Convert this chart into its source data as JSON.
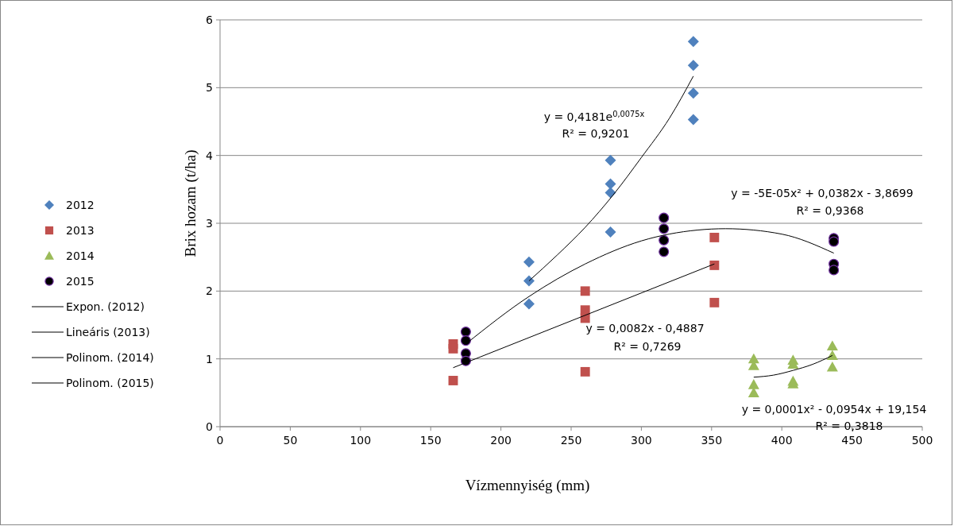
{
  "chart_data": {
    "type": "scatter",
    "xlabel": "Vízmennyiség (mm)",
    "ylabel": "Brix hozam (t/ha)",
    "xlim": [
      0,
      500
    ],
    "ylim": [
      0,
      6
    ],
    "xticks": [
      0,
      50,
      100,
      150,
      200,
      250,
      300,
      350,
      400,
      450,
      500
    ],
    "yticks": [
      0,
      1,
      2,
      3,
      4,
      5,
      6
    ],
    "grid": "y",
    "legend": "left",
    "series": [
      {
        "name": "2012",
        "marker": "diamond",
        "color": "#4f81bd",
        "x": [
          220,
          220,
          220,
          278,
          278,
          278,
          278,
          337,
          337,
          337,
          337
        ],
        "values": [
          2.43,
          2.15,
          1.81,
          3.93,
          3.58,
          3.45,
          2.87,
          5.68,
          5.33,
          4.92,
          4.53
        ]
      },
      {
        "name": "2013",
        "marker": "square",
        "color": "#c0504d",
        "x": [
          166,
          166,
          166,
          260,
          260,
          260,
          260,
          352,
          352,
          352
        ],
        "values": [
          1.22,
          1.15,
          0.68,
          2.0,
          1.72,
          1.6,
          0.81,
          2.79,
          2.38,
          1.83
        ]
      },
      {
        "name": "2014",
        "marker": "triangle",
        "color": "#9bbb59",
        "x": [
          380,
          380,
          380,
          380,
          408,
          408,
          408,
          408,
          436,
          436,
          436
        ],
        "values": [
          1.0,
          0.9,
          0.62,
          0.5,
          0.98,
          0.92,
          0.67,
          0.63,
          1.19,
          1.05,
          0.88
        ]
      },
      {
        "name": "2015",
        "marker": "circle",
        "color": "#000000",
        "x": [
          175,
          175,
          175,
          175,
          316,
          316,
          316,
          316,
          437,
          437,
          437,
          437
        ],
        "values": [
          1.4,
          1.27,
          1.08,
          0.97,
          3.08,
          2.92,
          2.75,
          2.58,
          2.78,
          2.73,
          2.4,
          2.31
        ]
      },
      {
        "name": "Expon. (2012)",
        "type": "line",
        "marker": "none",
        "color": "#000000",
        "x": [
          220,
          240,
          260,
          280,
          300,
          320,
          337
        ],
        "values": [
          2.15,
          2.53,
          2.94,
          3.42,
          3.97,
          4.55,
          5.17
        ]
      },
      {
        "name": "Lineáris (2013)",
        "type": "line",
        "marker": "none",
        "color": "#000000",
        "x": [
          166,
          352
        ],
        "values": [
          0.87,
          2.4
        ]
      },
      {
        "name": "Polinom. (2014)",
        "type": "line",
        "marker": "none",
        "color": "#000000",
        "x": [
          380,
          394,
          408,
          422,
          436
        ],
        "values": [
          0.73,
          0.76,
          0.83,
          0.92,
          1.05
        ]
      },
      {
        "name": "Polinom. (2015)",
        "type": "line",
        "marker": "none",
        "color": "#000000",
        "x": [
          175,
          220,
          260,
          300,
          340,
          360,
          400,
          437
        ],
        "values": [
          1.22,
          1.92,
          2.4,
          2.74,
          2.9,
          2.92,
          2.84,
          2.56
        ]
      }
    ],
    "annotations": [
      "y = 0,4181e$^{0,0075x}$",
      "R² = 0,9201",
      "y = -5E-05x² + 0,0382x - 3,8699",
      "R² = 0,9368",
      "y = 0,0082x - 0,4887",
      "R² = 0,7269",
      "y = 0,0001x² - 0,0954x + 19,154",
      "R² = 0,3818"
    ]
  }
}
